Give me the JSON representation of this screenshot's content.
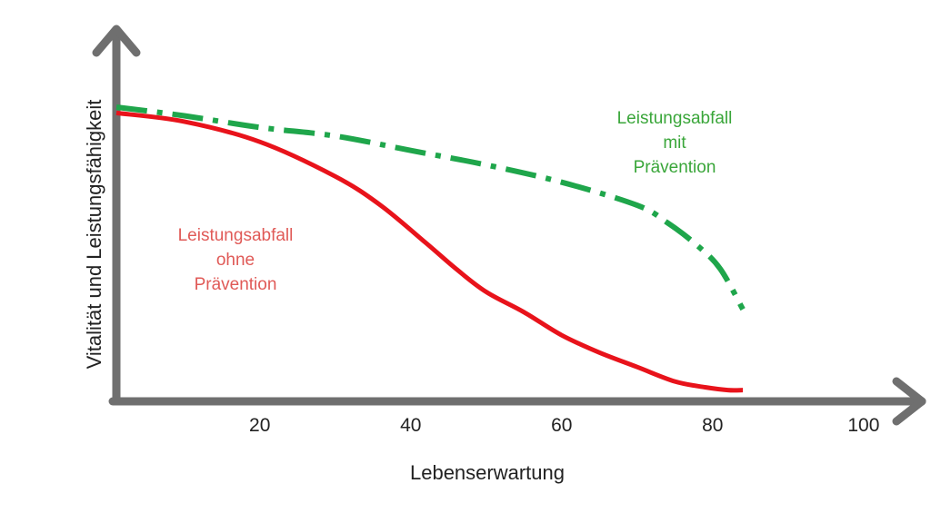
{
  "chart_data": {
    "type": "line",
    "title": "",
    "xlabel": "Lebenserwartung",
    "ylabel": "Vitalität und Leistungsfähigkeit",
    "x_ticks": [
      20,
      40,
      60,
      80,
      100
    ],
    "xlim": [
      1,
      107
    ],
    "ylim": [
      0,
      100
    ],
    "grid": false,
    "legend": "none",
    "series": [
      {
        "id": "ohne",
        "color": "#e8131b",
        "style": "solid",
        "x": [
          1,
          10,
          20,
          30,
          36,
          42,
          46,
          50,
          55,
          60,
          65,
          70,
          75,
          79,
          82,
          84
        ],
        "y": [
          98,
          95,
          88,
          76,
          66,
          53,
          44,
          36,
          29,
          21,
          15,
          10,
          5,
          3,
          2,
          2
        ]
      },
      {
        "id": "mit",
        "color": "#1fa64b",
        "style": "dashdot",
        "x": [
          1,
          10,
          20,
          30,
          40,
          50,
          60,
          70,
          74,
          78,
          81,
          84
        ],
        "y": [
          100,
          97,
          93,
          90,
          85,
          80,
          74,
          66,
          60,
          52,
          44,
          30
        ]
      }
    ],
    "annotations": [
      {
        "id": "ohne",
        "lines": [
          "Leistungsabfall",
          "ohne",
          "Prävention"
        ],
        "color": "#e05a57"
      },
      {
        "id": "mit",
        "lines": [
          "Leistungsabfall",
          "mit",
          "Prävention"
        ],
        "color": "#3aa63a"
      }
    ]
  }
}
